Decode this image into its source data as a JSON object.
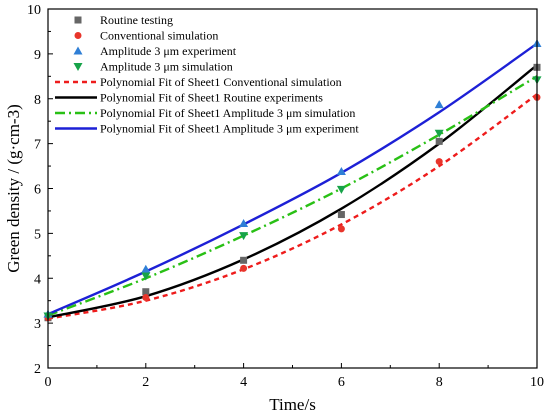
{
  "chart_data": {
    "type": "scatter",
    "title": "",
    "xlabel": "Time/s",
    "ylabel": "Green density / (g·cm-3)",
    "xlim": [
      0,
      10
    ],
    "ylim": [
      2,
      10
    ],
    "xticks": [
      "0",
      "2",
      "4",
      "6",
      "8",
      "10"
    ],
    "yticks": [
      "2",
      "3",
      "4",
      "5",
      "6",
      "7",
      "8",
      "9",
      "10"
    ],
    "grid": false,
    "legend_position": "top-left",
    "x": [
      0,
      2,
      4,
      6,
      8,
      10
    ],
    "series": [
      {
        "name": "Routine testing",
        "kind": "points",
        "marker": "square",
        "color": "#666666",
        "values": [
          3.12,
          3.7,
          4.4,
          5.42,
          7.05,
          8.7
        ]
      },
      {
        "name": "Conventional simulation",
        "kind": "points",
        "marker": "circle",
        "color": "#e8352b",
        "values": [
          3.12,
          3.57,
          4.22,
          5.1,
          6.6,
          8.03
        ]
      },
      {
        "name": "Amplitude 3 μm experiment",
        "kind": "points",
        "marker": "triangle-up",
        "color": "#2f7fd6",
        "values": [
          3.2,
          4.2,
          5.22,
          6.38,
          7.87,
          9.23
        ]
      },
      {
        "name": "Amplitude 3 μm simulation",
        "kind": "points",
        "marker": "triangle-down",
        "color": "#17a349",
        "values": [
          3.16,
          4.05,
          4.95,
          5.98,
          7.23,
          8.42
        ]
      },
      {
        "name": "Polynomial Fit of Sheet1 Conventional simulation",
        "kind": "line",
        "dash": "5,4",
        "color": "#ee1c1c",
        "values": [
          3.1,
          3.5,
          4.2,
          5.2,
          6.5,
          8.1
        ]
      },
      {
        "name": "Polynomial Fit of Sheet1 Routine experiments",
        "kind": "line",
        "dash": "",
        "color": "#000000",
        "values": [
          3.13,
          3.6,
          4.42,
          5.55,
          7.0,
          8.75
        ]
      },
      {
        "name": "Polynomial Fit of Sheet1 Amplitude 3 μm simulation",
        "kind": "line",
        "dash": "10,4,2,4",
        "color": "#29c015",
        "values": [
          3.17,
          4.0,
          4.95,
          6.0,
          7.2,
          8.5
        ]
      },
      {
        "name": "Polynomial Fit of Sheet1 Amplitude 3 μm experiment",
        "kind": "line",
        "dash": "",
        "color": "#1d20d6",
        "values": [
          3.2,
          4.15,
          5.2,
          6.35,
          7.7,
          9.23
        ]
      }
    ]
  }
}
